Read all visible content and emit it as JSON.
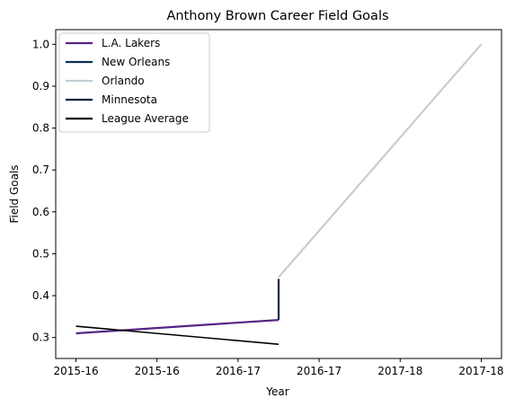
{
  "chart_data": {
    "type": "line",
    "title": "Anthony Brown  Career Field Goals",
    "xlabel": "Year",
    "ylabel": "Field Goals",
    "x_ticks": [
      "2015-16",
      "2015-16",
      "2016-17",
      "2016-17",
      "2017-18",
      "2017-18"
    ],
    "x_tick_positions": [
      0,
      1,
      2,
      3,
      4,
      5
    ],
    "xlim": [
      -0.25,
      5.25
    ],
    "y_ticks": [
      "0.3",
      "0.4",
      "0.5",
      "0.6",
      "0.7",
      "0.8",
      "0.9",
      "1.0"
    ],
    "y_tick_values": [
      0.3,
      0.4,
      0.5,
      0.6,
      0.7,
      0.8,
      0.9,
      1.0
    ],
    "ylim": [
      0.25,
      1.035
    ],
    "grid": false,
    "legend_position": "upper-left",
    "series": [
      {
        "name": "L.A. Lakers",
        "color": "#552583",
        "x": [
          0,
          2.5
        ],
        "y": [
          0.31,
          0.342
        ]
      },
      {
        "name": "New Orleans",
        "color": "#0C2C56",
        "x": [
          2.5,
          2.5
        ],
        "y": [
          0.342,
          0.44
        ]
      },
      {
        "name": "Orlando",
        "color": "#C4CED4",
        "x": [
          2.5,
          5
        ],
        "y": [
          0.444,
          1.0
        ]
      },
      {
        "name": "Minnesota",
        "color": "#0C2340",
        "x": [
          2.5,
          2.5
        ],
        "y": [
          0.342,
          0.342
        ]
      },
      {
        "name": "League Average",
        "color": "#000000",
        "x": [
          0,
          2.5
        ],
        "y": [
          0.327,
          0.284
        ]
      }
    ]
  }
}
